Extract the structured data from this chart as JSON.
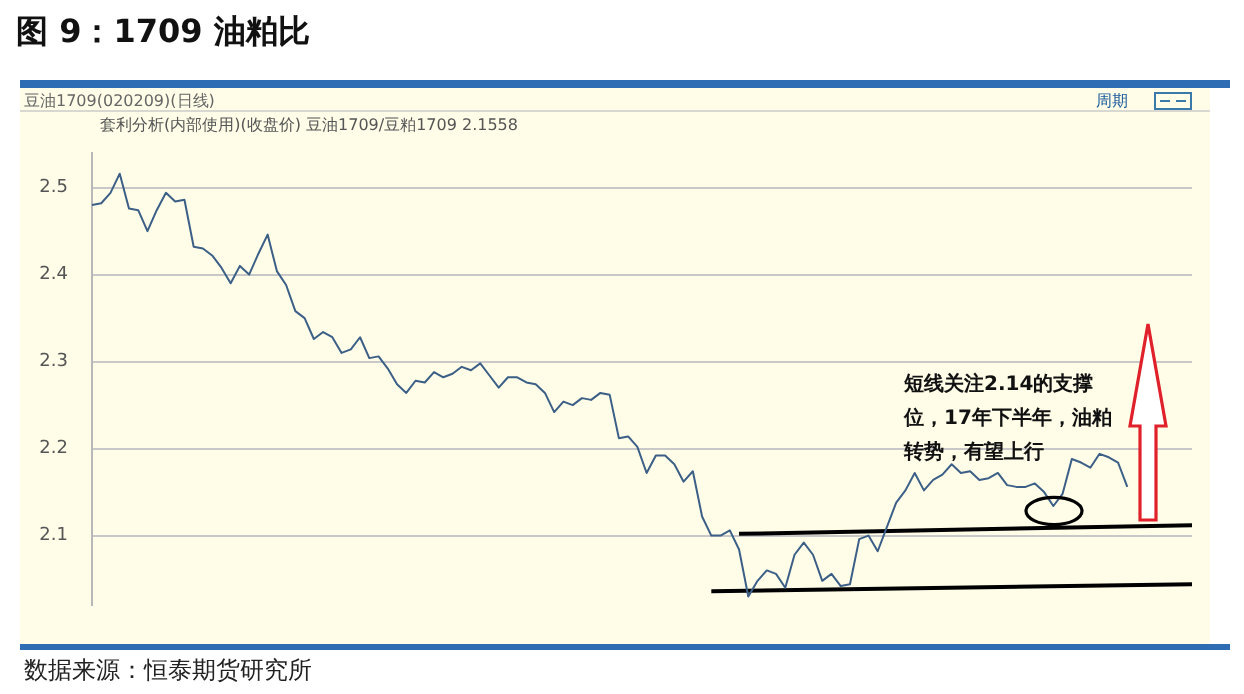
{
  "chart_data": {
    "type": "line",
    "title": "图 9：1709 油粕比",
    "subtitle": "套利分析(内部使用)(收盘价) 豆油1709/豆粕1709  2.1558",
    "annotations": [
      "豆油1709(020209)(日线)",
      "周期",
      "短线关注2.14的支撑位，17年下半年，油粕转势，有望上行",
      "数据来源：恒泰期货研究所"
    ],
    "categories": [
      null,
      null,
      null,
      null,
      null,
      null,
      null,
      null,
      null,
      null,
      null,
      null,
      null,
      null,
      null,
      null,
      null,
      null,
      null,
      null,
      null,
      null,
      null,
      null,
      null,
      null,
      null,
      null,
      null,
      null,
      null,
      null,
      null,
      null,
      null,
      null,
      null,
      null,
      null,
      null,
      null,
      null,
      null,
      null,
      null,
      null,
      null,
      null,
      null,
      null,
      null,
      null,
      null,
      null,
      null,
      null,
      null,
      null,
      null,
      null,
      null,
      null,
      null,
      null,
      null,
      null,
      null,
      null,
      null,
      null,
      null,
      null,
      null,
      null,
      null,
      null,
      null,
      null,
      null,
      null,
      null,
      null,
      null,
      null,
      null,
      null,
      null,
      null,
      null,
      null,
      null,
      null,
      null,
      null,
      null,
      null,
      null,
      null,
      null,
      null,
      null,
      null,
      null,
      null,
      null,
      null,
      null,
      null,
      null,
      null,
      null,
      null,
      null,
      null,
      null,
      null,
      null,
      null,
      null,
      null
    ],
    "series": [
      {
        "color": "#3b5f86",
        "values": [
          2.48,
          2.482,
          2.494,
          2.516,
          2.476,
          2.474,
          2.45,
          2.474,
          2.494,
          2.484,
          2.486,
          2.432,
          2.43,
          2.422,
          2.408,
          2.39,
          2.41,
          2.4,
          2.424,
          2.446,
          2.404,
          2.388,
          2.358,
          2.35,
          2.326,
          2.334,
          2.328,
          2.31,
          2.314,
          2.328,
          2.304,
          2.306,
          2.292,
          2.274,
          2.264,
          2.278,
          2.276,
          2.288,
          2.282,
          2.286,
          2.294,
          2.29,
          2.298,
          2.284,
          2.27,
          2.282,
          2.282,
          2.276,
          2.274,
          2.264,
          2.242,
          2.254,
          2.25,
          2.258,
          2.256,
          2.264,
          2.262,
          2.212,
          2.214,
          2.202,
          2.172,
          2.192,
          2.192,
          2.182,
          2.162,
          2.174,
          2.122,
          2.1,
          2.1,
          2.106,
          2.084,
          2.03,
          2.048,
          2.06,
          2.056,
          2.04,
          2.078,
          2.092,
          2.078,
          2.048,
          2.056,
          2.042,
          2.044,
          2.096,
          2.1,
          2.082,
          2.11,
          2.138,
          2.152,
          2.172,
          2.152,
          2.164,
          2.17,
          2.182,
          2.172,
          2.174,
          2.164,
          2.166,
          2.172,
          2.158,
          2.156,
          2.156,
          2.16,
          2.15,
          2.134,
          2.148,
          2.188,
          2.184,
          2.178,
          2.194,
          2.19,
          2.184,
          2.156,
          null,
          null,
          null,
          null,
          null,
          null,
          null
        ]
      },
      {
        "color": "#000000",
        "values": [
          null,
          null,
          null,
          null,
          null,
          null,
          null,
          null,
          null,
          null,
          null,
          null,
          null,
          null,
          null,
          null,
          null,
          null,
          null,
          null,
          null,
          null,
          null,
          null,
          null,
          null,
          null,
          null,
          null,
          null,
          null,
          null,
          null,
          null,
          null,
          null,
          null,
          null,
          null,
          null,
          null,
          null,
          null,
          null,
          null,
          null,
          null,
          null,
          null,
          null,
          null,
          null,
          null,
          null,
          null,
          null,
          null,
          null,
          null,
          null,
          null,
          null,
          null,
          null,
          null,
          null,
          null,
          null,
          null,
          null,
          2.102,
          null,
          null,
          null,
          null,
          null,
          null,
          null,
          null,
          null,
          null,
          null,
          null,
          null,
          null,
          null,
          null,
          null,
          null,
          null,
          null,
          null,
          null,
          null,
          null,
          null,
          null,
          null,
          null,
          null,
          null,
          null,
          null,
          null,
          null,
          null,
          null,
          null,
          null,
          null,
          null,
          null,
          null,
          null,
          null,
          null,
          null,
          null,
          null,
          2.112
        ]
      },
      {
        "color": "#000000",
        "values": [
          null,
          null,
          null,
          null,
          null,
          null,
          null,
          null,
          null,
          null,
          null,
          null,
          null,
          null,
          null,
          null,
          null,
          null,
          null,
          null,
          null,
          null,
          null,
          null,
          null,
          null,
          null,
          null,
          null,
          null,
          null,
          null,
          null,
          null,
          null,
          null,
          null,
          null,
          null,
          null,
          null,
          null,
          null,
          null,
          null,
          null,
          null,
          null,
          null,
          null,
          null,
          null,
          null,
          null,
          null,
          null,
          null,
          null,
          null,
          null,
          null,
          null,
          null,
          null,
          null,
          null,
          null,
          2.036,
          null,
          null,
          null,
          null,
          null,
          null,
          null,
          null,
          null,
          null,
          null,
          null,
          null,
          null,
          null,
          null,
          null,
          null,
          null,
          null,
          null,
          null,
          null,
          null,
          null,
          null,
          null,
          null,
          null,
          null,
          null,
          null,
          null,
          null,
          null,
          null,
          null,
          null,
          null,
          null,
          null,
          null,
          null,
          null,
          null,
          null,
          null,
          null,
          null,
          null,
          null,
          2.044
        ]
      }
    ],
    "ylim": [
      2.02,
      2.54
    ],
    "yticks": [
      2.1,
      2.2,
      2.3,
      2.4,
      2.5
    ],
    "grid": "y",
    "legend": false,
    "marker": "none",
    "tick_labels": "y"
  }
}
